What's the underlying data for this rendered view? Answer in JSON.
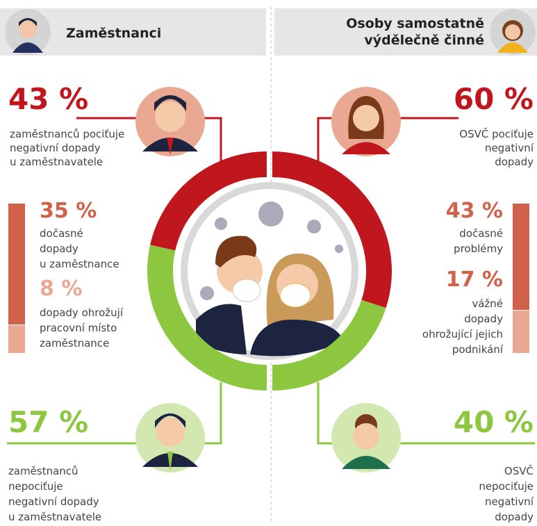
{
  "left": {
    "header": "Zaměstnanci",
    "top": {
      "value": 43,
      "label": "43 %",
      "text": [
        "zaměstnanců pociťuje",
        "negativní dopady",
        "u zaměstnavatele"
      ]
    },
    "parts": [
      {
        "value": 35,
        "label": "35 %",
        "text": [
          "dočasné",
          "dopady",
          "u zaměstnance"
        ]
      },
      {
        "value": 8,
        "label": "8 %",
        "text": [
          "dopady ohrožují",
          "pracovní místo",
          "zaměstnance"
        ]
      }
    ],
    "bottom": {
      "value": 57,
      "label": "57 %",
      "text": [
        "zaměstnanců",
        "nepociťuje",
        "negativní dopady",
        "u zaměstnavatele"
      ]
    }
  },
  "right": {
    "header": [
      "Osoby samostatně",
      "výdělečně činné"
    ],
    "top": {
      "value": 60,
      "label": "60 %",
      "text": [
        "OSVČ pociťuje",
        "negativní",
        "dopady"
      ]
    },
    "parts": [
      {
        "value": 43,
        "label": "43 %",
        "text": [
          "dočasné",
          "problémy"
        ]
      },
      {
        "value": 17,
        "label": "17 %",
        "text": [
          "vážné",
          "dopady",
          "ohrožující jejich",
          "podnikání"
        ]
      }
    ],
    "bottom": {
      "value": 40,
      "label": "40 %",
      "text": [
        "OSVČ",
        "nepociťuje",
        "negativní",
        "dopady"
      ]
    }
  }
}
